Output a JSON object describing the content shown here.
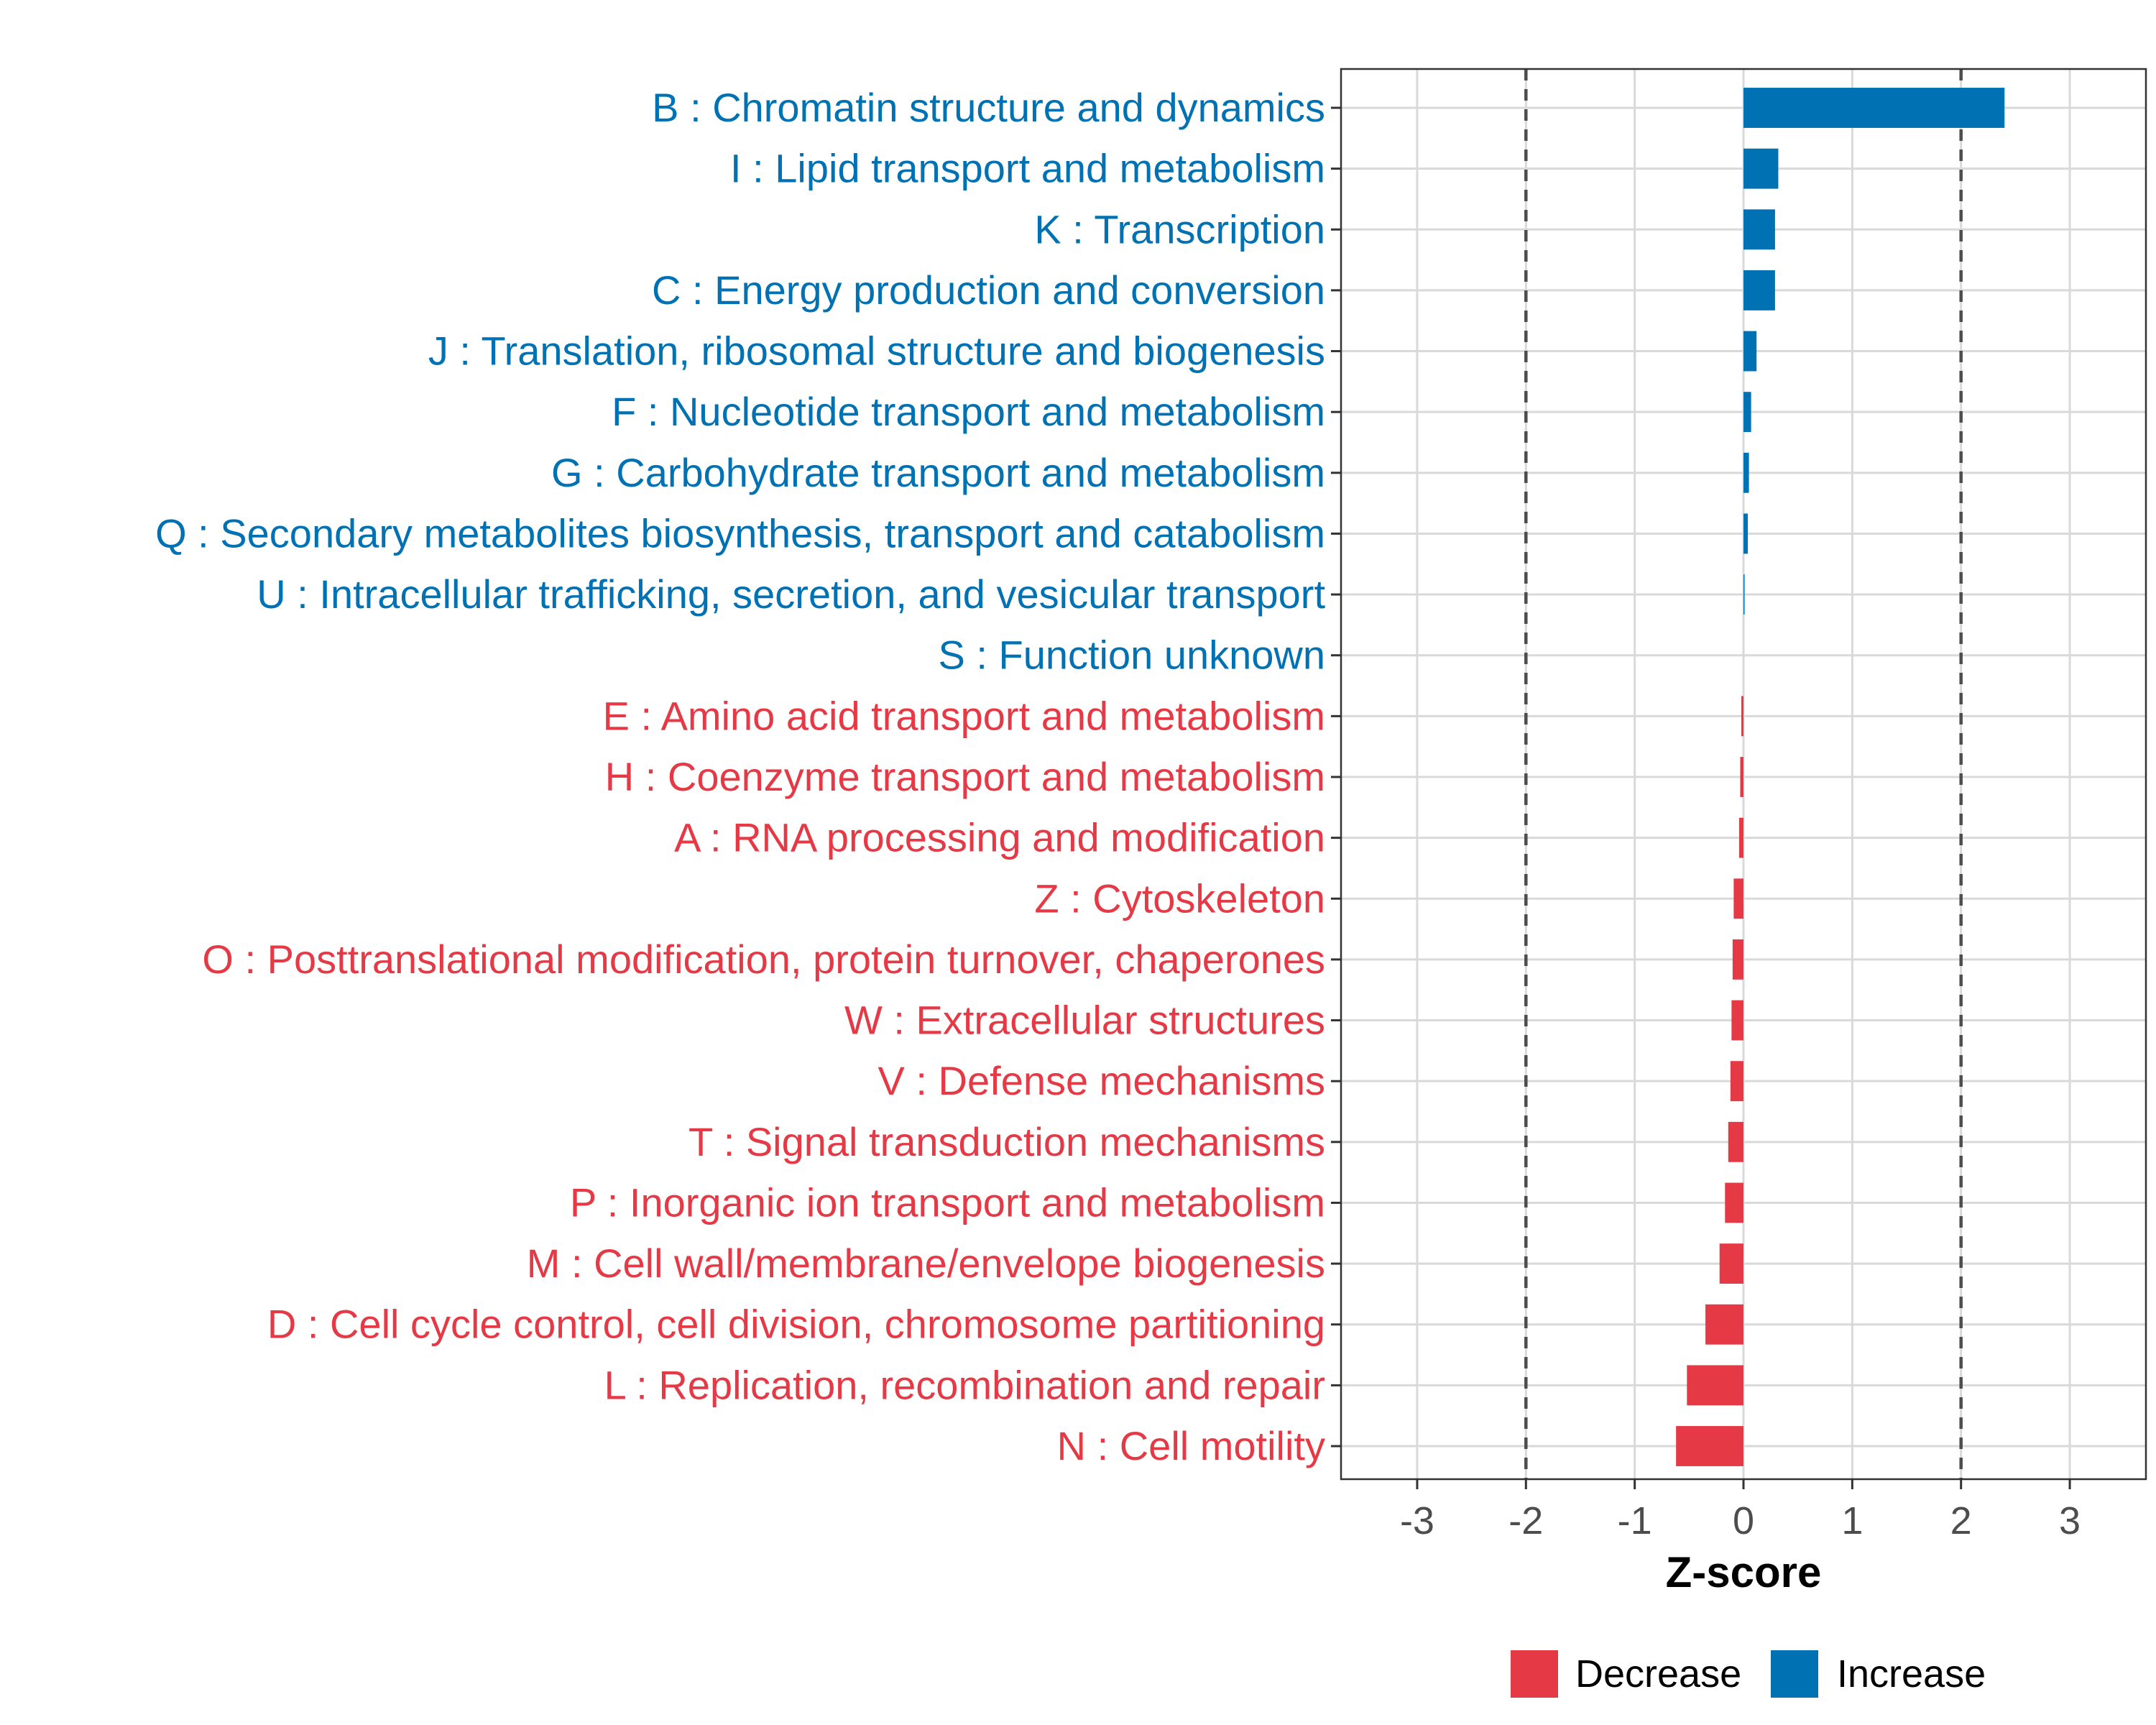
{
  "colors": {
    "increase": "#0071b2",
    "decrease": "#e63946",
    "grid": "#d9d9d9",
    "tick_text": "#4d4d4d",
    "ref_line": "#4d4d4d"
  },
  "chart_data": {
    "type": "bar",
    "orientation": "horizontal",
    "xlabel": "Z-score",
    "xlim": [
      -3.7,
      3.7
    ],
    "xticks": [
      -3,
      -2,
      -1,
      0,
      1,
      2,
      3
    ],
    "reference_lines": [
      -2,
      2
    ],
    "grid": true,
    "legend_position": "bottom",
    "legend": [
      {
        "label": "Decrease",
        "color": "#e63946"
      },
      {
        "label": "Increase",
        "color": "#0071b2"
      }
    ],
    "categories": [
      "B : Chromatin structure and dynamics",
      "I : Lipid transport and metabolism",
      "K : Transcription",
      "C : Energy production and conversion",
      "J : Translation, ribosomal structure and biogenesis",
      "F : Nucleotide transport and metabolism",
      "G : Carbohydrate transport and metabolism",
      "Q : Secondary metabolites biosynthesis, transport and catabolism",
      "U : Intracellular trafficking, secretion, and vesicular transport",
      "S : Function unknown",
      "E : Amino acid transport and metabolism",
      "H : Coenzyme transport and metabolism",
      "A : RNA processing and modification",
      "Z : Cytoskeleton",
      "O : Posttranslational modification, protein turnover, chaperones",
      "W : Extracellular structures",
      "V : Defense mechanisms",
      "T : Signal transduction mechanisms",
      "P : Inorganic ion transport and metabolism",
      "M : Cell wall/membrane/envelope biogenesis",
      "D : Cell cycle control, cell division, chromosome partitioning",
      "L : Replication, recombination and repair",
      "N : Cell motility"
    ],
    "values": [
      2.4,
      0.32,
      0.29,
      0.29,
      0.12,
      0.07,
      0.05,
      0.04,
      0.01,
      0.0,
      -0.02,
      -0.03,
      -0.04,
      -0.09,
      -0.1,
      -0.11,
      -0.12,
      -0.14,
      -0.17,
      -0.22,
      -0.35,
      -0.52,
      -0.62
    ]
  }
}
